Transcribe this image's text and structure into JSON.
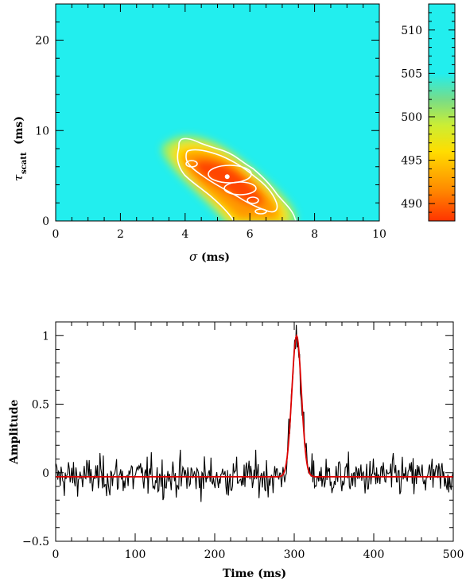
{
  "chart_data": [
    {
      "type": "heatmap",
      "xlabel": {
        "symbol": "σ",
        "unit": "(ms)"
      },
      "ylabel": {
        "symbol": "τ",
        "subscript": "scatt",
        "unit": "(ms)"
      },
      "xlim": [
        0,
        10
      ],
      "ylim": [
        0,
        24
      ],
      "x_ticks": [
        "0",
        "2",
        "4",
        "6",
        "8",
        "10"
      ],
      "y_ticks": [
        "0",
        "10",
        "20"
      ],
      "colorbar": {
        "range": [
          488,
          513
        ],
        "ticks": [
          "490",
          "495",
          "500",
          "505",
          "510"
        ],
        "colormap": [
          "#ff3300",
          "#ff8800",
          "#ffdd00",
          "#ccee33",
          "#77dd88",
          "#22eeee"
        ]
      },
      "minimum": {
        "sigma": 5.3,
        "tau": 4.9,
        "value": 488
      },
      "background_value": 512,
      "contours": 4
    },
    {
      "type": "line",
      "xlabel": "Time (ms)",
      "ylabel": "Amplitude",
      "xlim": [
        0,
        500
      ],
      "ylim": [
        -0.5,
        1.1
      ],
      "x_ticks": [
        "0",
        "100",
        "200",
        "300",
        "400",
        "500"
      ],
      "y_ticks": [
        "−0.5",
        "0",
        "0.5",
        "1"
      ],
      "series": [
        {
          "color": "#000000",
          "kind": "data",
          "baseline": -0.03,
          "noise_sigma": 0.13,
          "n": 480
        },
        {
          "color": "#dd0000",
          "kind": "model",
          "baseline": -0.03,
          "peak_time": 303,
          "peak_amplitude": 1.0,
          "sigma_ms": 6
        }
      ]
    }
  ]
}
